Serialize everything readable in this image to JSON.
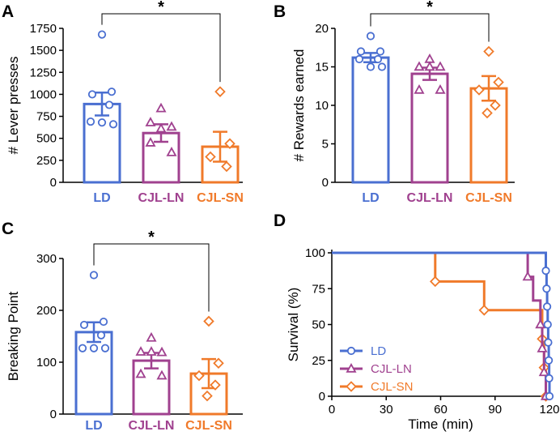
{
  "colors": {
    "LD": "#4a6fd1",
    "CJL-LN": "#a0418f",
    "CJL-SN": "#f07a2a",
    "axis": "#000000"
  },
  "chart_data": [
    {
      "panel": "A",
      "type": "bar",
      "ylabel": "# Lever presses",
      "ylim": [
        0,
        1750
      ],
      "yticks": [
        0,
        250,
        500,
        750,
        1000,
        1250,
        1500,
        1750
      ],
      "categories": [
        "LD",
        "CJL-LN",
        "CJL-SN"
      ],
      "values": [
        890,
        560,
        405
      ],
      "sem": [
        130,
        100,
        170
      ],
      "points": [
        [
          1680,
          1030,
          1000,
          880,
          690,
          680,
          660
        ],
        [
          840,
          680,
          630,
          610,
          450,
          340
        ],
        [
          1030,
          440,
          290,
          180
        ]
      ],
      "markers": [
        "circle",
        "triangle",
        "diamond"
      ],
      "significance": {
        "from": 0,
        "to": 2,
        "label": "*"
      }
    },
    {
      "panel": "B",
      "type": "bar",
      "ylabel": "# Rewards earned",
      "ylim": [
        0,
        20
      ],
      "yticks": [
        0,
        5,
        10,
        15,
        20
      ],
      "categories": [
        "LD",
        "CJL-LN",
        "CJL-SN"
      ],
      "values": [
        16.2,
        14.1,
        12.2
      ],
      "sem": [
        0.6,
        0.8,
        1.6
      ],
      "points": [
        [
          19,
          17,
          17,
          16,
          16,
          15,
          15
        ],
        [
          16,
          15,
          15,
          15,
          12,
          12
        ],
        [
          17,
          13,
          12,
          10,
          9
        ]
      ],
      "markers": [
        "circle",
        "triangle",
        "diamond"
      ],
      "significance": {
        "from": 0,
        "to": 2,
        "label": "*"
      }
    },
    {
      "panel": "C",
      "type": "bar",
      "ylabel": "Breaking Point",
      "ylim": [
        0,
        300
      ],
      "yticks": [
        0,
        100,
        200,
        300
      ],
      "categories": [
        "LD",
        "CJL-LN",
        "CJL-SN"
      ],
      "values": [
        158,
        103,
        78
      ],
      "sem": [
        19,
        15,
        28
      ],
      "points": [
        [
          268,
          178,
          172,
          152,
          127,
          127,
          127
        ],
        [
          147,
          120,
          119,
          120,
          77,
          74
        ],
        [
          179,
          98,
          74,
          56,
          35
        ]
      ],
      "markers": [
        "circle",
        "triangle",
        "diamond"
      ],
      "significance": {
        "from": 0,
        "to": 2,
        "label": "*"
      }
    },
    {
      "panel": "D",
      "type": "line",
      "xlabel": "Time (min)",
      "ylabel": "Survival (%)",
      "xlim": [
        0,
        120
      ],
      "ylim": [
        0,
        100
      ],
      "xticks": [
        0,
        30,
        60,
        90,
        120
      ],
      "yticks": [
        0,
        25,
        50,
        75,
        100
      ],
      "legend": [
        "LD",
        "CJL-LN",
        "CJL-SN"
      ],
      "legend_position": "bottom-left",
      "series": [
        {
          "name": "LD",
          "marker": "circle",
          "steps": [
            [
              0,
              100
            ],
            [
              118,
              100
            ],
            [
              118,
              87.5
            ],
            [
              118.4,
              87.5
            ],
            [
              118.4,
              75
            ],
            [
              118.7,
              75
            ],
            [
              118.7,
              62.5
            ],
            [
              119,
              62.5
            ],
            [
              119,
              50
            ],
            [
              119.3,
              50
            ],
            [
              119.3,
              37.5
            ],
            [
              119.6,
              37.5
            ],
            [
              119.6,
              25
            ],
            [
              119.8,
              25
            ],
            [
              119.8,
              12.5
            ],
            [
              120,
              12.5
            ],
            [
              120,
              0
            ]
          ],
          "markers_at": [
            [
              118,
              87.5
            ],
            [
              118.4,
              75
            ],
            [
              118.7,
              62.5
            ],
            [
              119,
              50
            ],
            [
              119.3,
              37.5
            ],
            [
              119.6,
              25
            ],
            [
              119.8,
              12.5
            ],
            [
              120,
              0
            ]
          ]
        },
        {
          "name": "CJL-LN",
          "marker": "triangle",
          "steps": [
            [
              0,
              100
            ],
            [
              108,
              100
            ],
            [
              108,
              83.3
            ],
            [
              111,
              83.3
            ],
            [
              111,
              66.7
            ],
            [
              115,
              66.7
            ],
            [
              115,
              50
            ],
            [
              116,
              50
            ],
            [
              116,
              33.3
            ],
            [
              117,
              33.3
            ],
            [
              117,
              16.7
            ],
            [
              118,
              16.7
            ],
            [
              118,
              0
            ]
          ],
          "markers_at": [
            [
              108,
              83.3
            ],
            [
              115,
              50
            ],
            [
              116,
              33.3
            ],
            [
              117,
              16.7
            ],
            [
              118,
              0
            ]
          ]
        },
        {
          "name": "CJL-SN",
          "marker": "diamond",
          "steps": [
            [
              0,
              100
            ],
            [
              57,
              100
            ],
            [
              57,
              80
            ],
            [
              84,
              80
            ],
            [
              84,
              60
            ],
            [
              116,
              60
            ],
            [
              116,
              40
            ],
            [
              117,
              40
            ],
            [
              117,
              20
            ],
            [
              118,
              20
            ],
            [
              118,
              0
            ]
          ],
          "markers_at": [
            [
              57,
              80
            ],
            [
              84,
              60
            ],
            [
              116,
              40
            ],
            [
              117,
              20
            ],
            [
              118,
              0
            ]
          ]
        }
      ]
    }
  ]
}
